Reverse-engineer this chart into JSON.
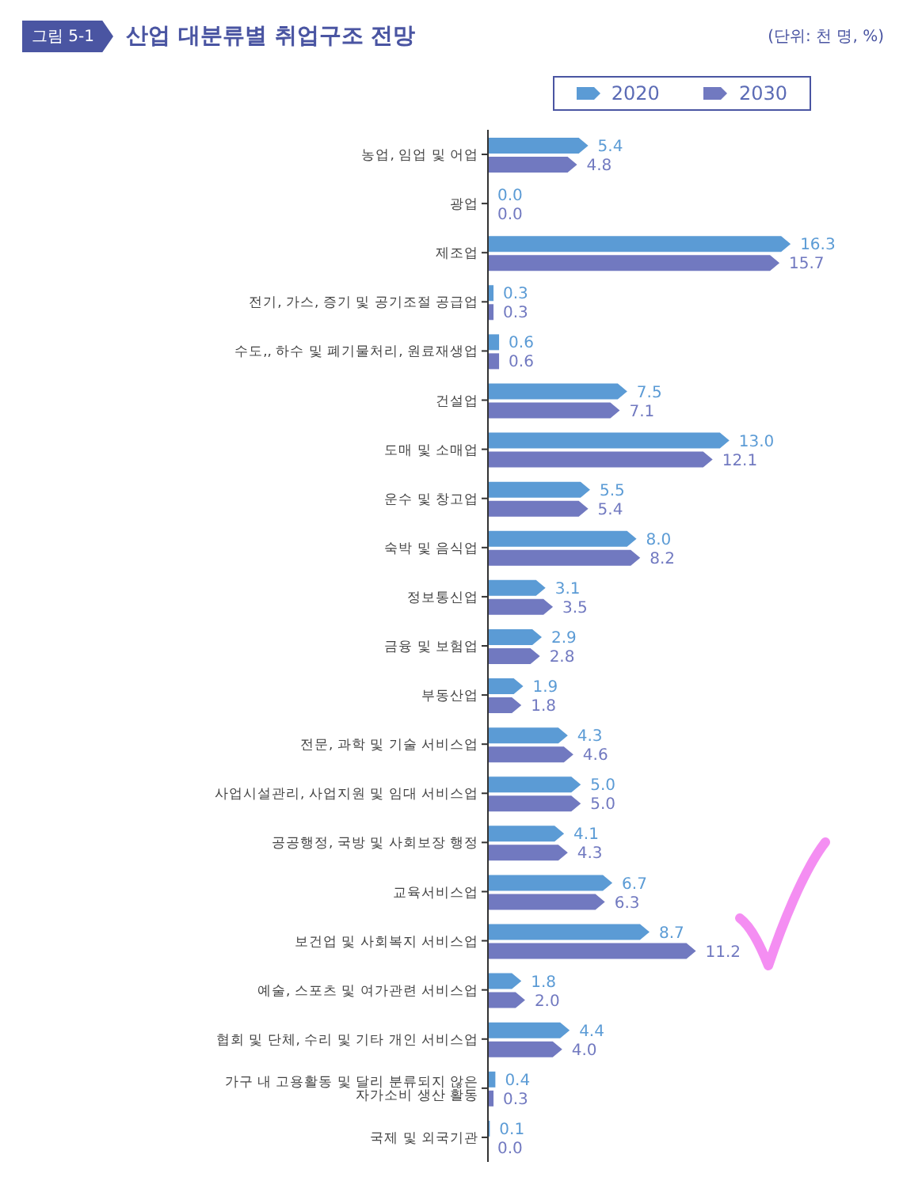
{
  "chart_data": {
    "type": "bar",
    "orientation": "horizontal",
    "title": "산업 대분류별 취업구조 전망",
    "annotations": [
      "그림 5-1",
      "(단위: 천 명, %)"
    ],
    "categories": [
      "농업, 임업 및 어업",
      "광업",
      "제조업",
      "전기, 가스, 증기 및 공기조절 공급업",
      "수도,, 하수 및 폐기물처리, 원료재생업",
      "건설업",
      "도매 및 소매업",
      "운수 및 창고업",
      "숙박 및 음식업",
      "정보통신업",
      "금융 및 보험업",
      "부동산업",
      "전문, 과학 및 기술 서비스업",
      "사업시설관리, 사업지원 및 임대 서비스업",
      "공공행정, 국방 및 사회보장 행정",
      "교육서비스업",
      "보건업 및 사회복지 서비스업",
      "예술, 스포츠 및 여가관련 서비스업",
      "협회 및 단체, 수리 및 기타 개인 서비스업",
      "가구 내 고용활동 및 달리 분류되지 않은 자가소비 생산 활동",
      "국제 및 외국기관"
    ],
    "series": [
      {
        "name": "2020",
        "color": "#5b9bd5",
        "values": [
          5.4,
          0.0,
          16.3,
          0.3,
          0.6,
          7.5,
          13.0,
          5.5,
          8.0,
          3.1,
          2.9,
          1.9,
          4.3,
          5.0,
          4.1,
          6.7,
          8.7,
          1.8,
          4.4,
          0.4,
          0.1
        ],
        "value_labels": [
          "5.4",
          "0.0",
          "16.3",
          "0.3",
          "0.6",
          "7.5",
          "13.0",
          "5.5",
          "8.0",
          "3.1",
          "2.9",
          "1.9",
          "4.3",
          "5.0",
          "4.1",
          "6.7",
          "8.7",
          "1.8",
          "4.4",
          "0.4",
          "0.1"
        ]
      },
      {
        "name": "2030",
        "color": "#7179c0",
        "values": [
          4.8,
          0.0,
          15.7,
          0.3,
          0.6,
          7.1,
          12.1,
          5.4,
          8.2,
          3.5,
          2.8,
          1.8,
          4.6,
          5.0,
          4.3,
          6.3,
          11.2,
          2.0,
          4.0,
          0.3,
          0.0
        ],
        "value_labels": [
          "4.8",
          "0.0",
          "15.7",
          "0.3",
          "0.6",
          "7.1",
          "12.1",
          "5.4",
          "8.2",
          "3.5",
          "2.8",
          "1.8",
          "4.6",
          "5.0",
          "4.3",
          "6.3",
          "11.2",
          "2.0",
          "4.0",
          "0.3",
          "0.0"
        ]
      }
    ],
    "legend": "top right"
  }
}
